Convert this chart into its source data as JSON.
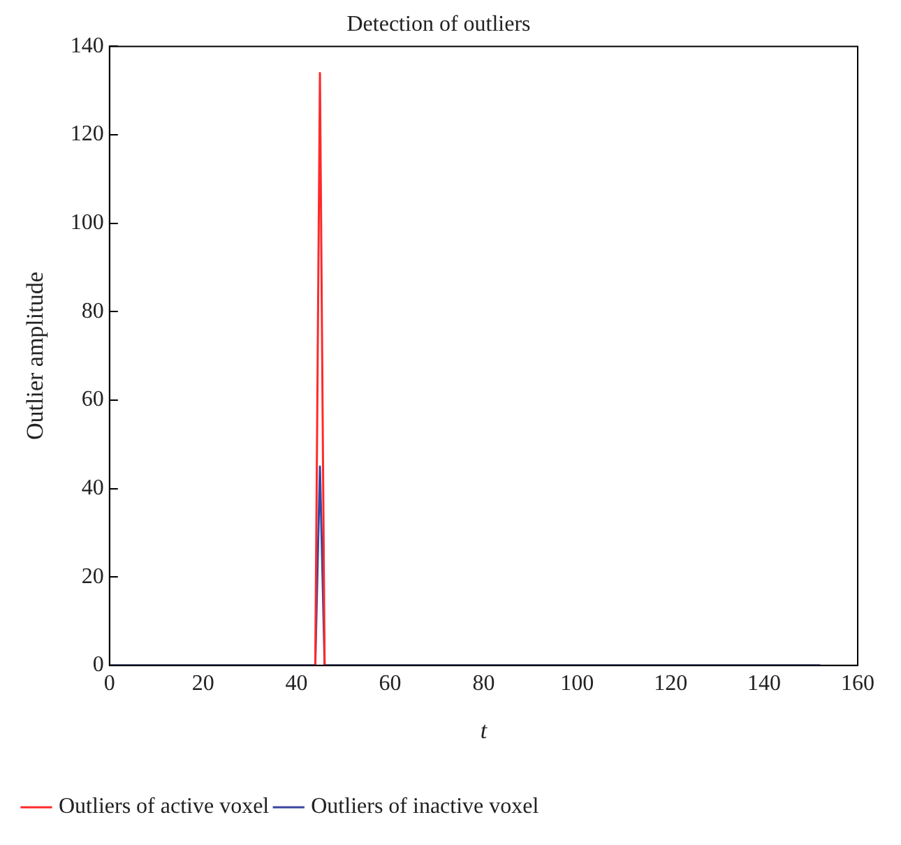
{
  "chart_data": {
    "type": "line",
    "title": "Detection of outliers",
    "xlabel": "t",
    "ylabel": "Outlier amplitude",
    "xlim": [
      0,
      160
    ],
    "xticks": [
      0,
      20,
      40,
      60,
      80,
      100,
      120,
      140,
      160
    ],
    "ylim": [
      0,
      140
    ],
    "yticks": [
      0,
      20,
      40,
      60,
      80,
      100,
      120,
      140
    ],
    "grid": false,
    "legend": "bottom",
    "marker": "none",
    "line_style": "solid",
    "series": [
      {
        "name": "Outliers of active voxel",
        "color": "#ff2a2a",
        "x": [
          44,
          45,
          46
        ],
        "values": [
          0,
          134,
          0
        ]
      },
      {
        "name": "Outliers of inactive voxel",
        "color": "#3a45a0",
        "x": [
          0,
          44,
          45,
          46,
          152
        ],
        "values": [
          0,
          0,
          45,
          0,
          0
        ]
      }
    ]
  }
}
